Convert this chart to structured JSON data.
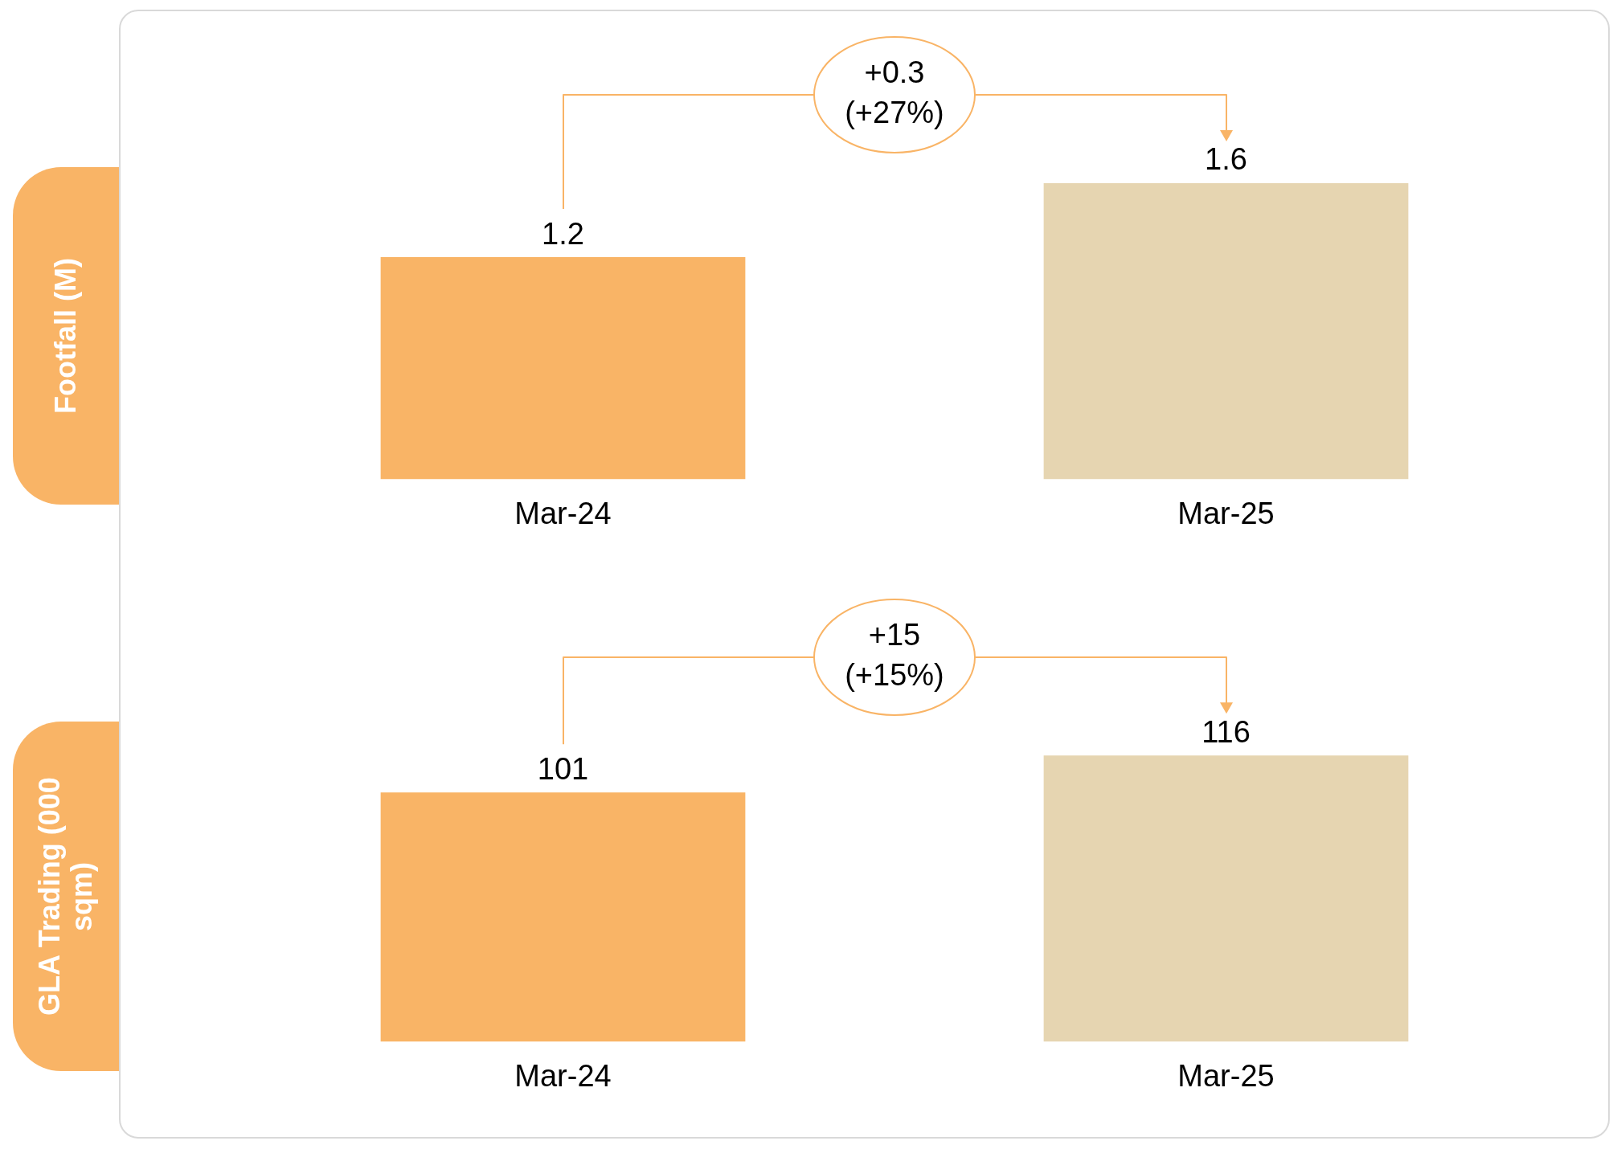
{
  "chart_data": [
    {
      "type": "bar",
      "ylabel": "Footfall  (M)",
      "categories": [
        "Mar-24",
        "Mar-25"
      ],
      "values": [
        1.2,
        1.6
      ],
      "colors": [
        "#f9b466",
        "#e6d5b1"
      ],
      "data_labels": true,
      "annotations": [
        "+0.3 (+27%)"
      ]
    },
    {
      "type": "bar",
      "ylabel": "GLA Trading (000 sqm)",
      "categories": [
        "Mar-24",
        "Mar-25"
      ],
      "values": [
        101,
        116
      ],
      "colors": [
        "#f9b466",
        "#e6d5b1"
      ],
      "data_labels": true,
      "annotations": [
        "+15 (+15%)"
      ]
    }
  ]
}
